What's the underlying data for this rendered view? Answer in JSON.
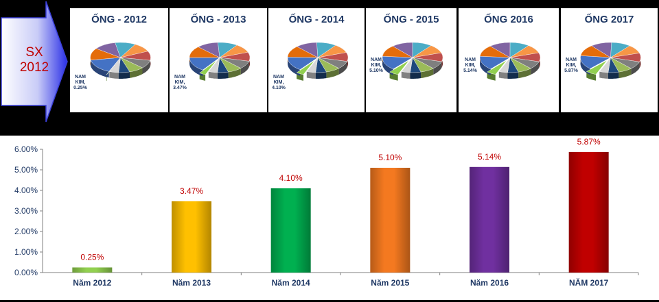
{
  "arrow": {
    "label": "SX\n2012"
  },
  "pies": [
    {
      "title": "ỐNG - 2012",
      "label": "NAM\nKIM,\n0.25%",
      "share": 0.0025
    },
    {
      "title": "ỐNG - 2013",
      "label": "NAM\nKIM,\n3.47%",
      "share": 0.0347
    },
    {
      "title": "ỐNG - 2014",
      "label": "NAM\nKIM,\n4.10%",
      "share": 0.041
    },
    {
      "title": "ỐNG - 2015",
      "label": "NAM\nKIM,\n5.10%",
      "share": 0.051
    },
    {
      "title": "ỐNG 2016",
      "label": "NAM\nKIM,\n5.14%",
      "share": 0.0514
    },
    {
      "title": "ỐNG 2017",
      "label": "NAM\nKIM,\n5.87%",
      "share": 0.0587
    }
  ],
  "chart_data": {
    "type": "bar",
    "categories": [
      "Năm 2012",
      "Năm 2013",
      "Năm 2014",
      "Năm 2015",
      "Năm 2016",
      "NĂM 2017"
    ],
    "values": [
      0.0025,
      0.0347,
      0.041,
      0.051,
      0.0514,
      0.0587
    ],
    "data_labels": [
      "0.25%",
      "3.47%",
      "4.10%",
      "5.10%",
      "5.14%",
      "5.87%"
    ],
    "y_ticks": [
      "0.00%",
      "1.00%",
      "2.00%",
      "3.00%",
      "4.00%",
      "5.00%",
      "6.00%"
    ],
    "ylim": [
      0,
      0.06
    ],
    "grid": false,
    "legend": "none",
    "bar_colors": [
      "#92d050",
      "#ffc000",
      "#00b050",
      "#f47920",
      "#7030a0",
      "#c00000"
    ],
    "label_color": "#c00000",
    "category_color": "#1f3864"
  }
}
